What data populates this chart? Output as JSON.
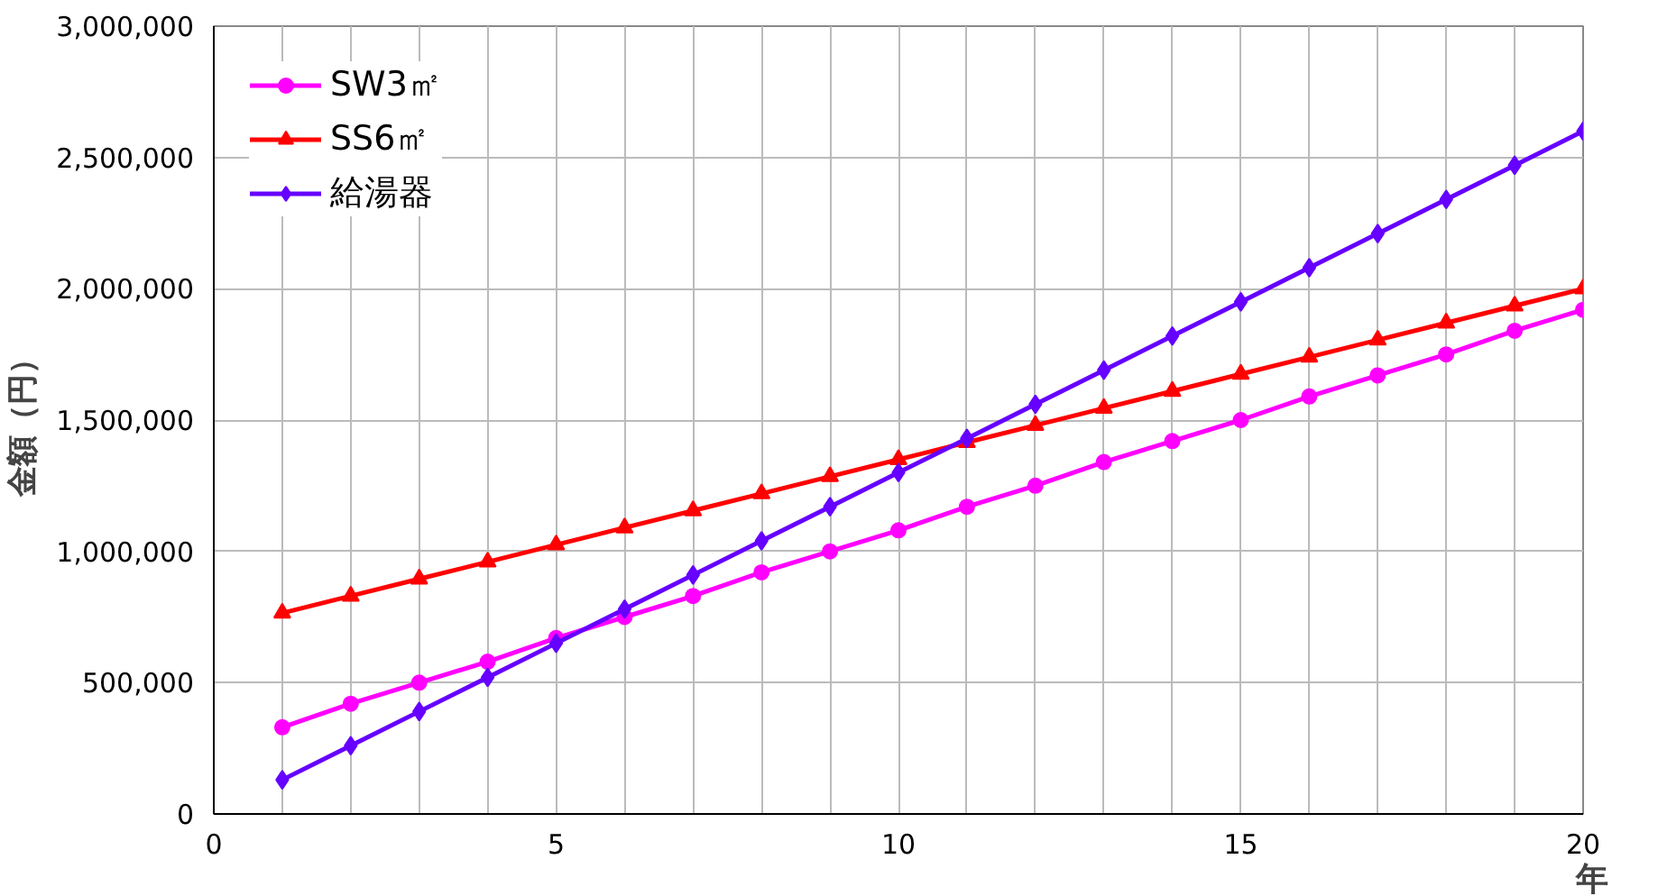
{
  "chart_data": {
    "type": "line",
    "xlabel": "年",
    "ylabel": "金額（円）",
    "x": [
      1,
      2,
      3,
      4,
      5,
      6,
      7,
      8,
      9,
      10,
      11,
      12,
      13,
      14,
      15,
      16,
      17,
      18,
      19,
      20
    ],
    "series": [
      {
        "name": "SW3㎡",
        "color": "#ff00ff",
        "marker": "circle",
        "values": [
          330000,
          420000,
          500000,
          580000,
          670000,
          750000,
          830000,
          920000,
          1000000,
          1080000,
          1170000,
          1250000,
          1340000,
          1420000,
          1500000,
          1590000,
          1670000,
          1750000,
          1840000,
          1920000
        ]
      },
      {
        "name": "SS6㎡",
        "color": "#ff0000",
        "marker": "triangle",
        "values": [
          765000,
          830000,
          895000,
          960000,
          1025000,
          1090000,
          1155000,
          1220000,
          1285000,
          1350000,
          1415000,
          1480000,
          1545000,
          1610000,
          1675000,
          1740000,
          1805000,
          1870000,
          1935000,
          2000000
        ]
      },
      {
        "name": "給湯器",
        "color": "#6600ff",
        "marker": "diamond",
        "values": [
          130000,
          260000,
          390000,
          520000,
          650000,
          780000,
          910000,
          1040000,
          1170000,
          1300000,
          1430000,
          1560000,
          1690000,
          1820000,
          1950000,
          2080000,
          2210000,
          2340000,
          2470000,
          2600000
        ]
      }
    ],
    "xlim": [
      0,
      20
    ],
    "ylim": [
      0,
      3000000
    ],
    "xticks": [
      0,
      {
        "value": 1,
        "label": null
      },
      {
        "value": 2,
        "label": null
      },
      {
        "value": 3,
        "label": null
      },
      {
        "value": 4,
        "label": null
      },
      5,
      {
        "value": 6,
        "label": null
      },
      {
        "value": 7,
        "label": null
      },
      {
        "value": 8,
        "label": null
      },
      {
        "value": 9,
        "label": null
      },
      10,
      {
        "value": 11,
        "label": null
      },
      {
        "value": 12,
        "label": null
      },
      {
        "value": 13,
        "label": null
      },
      {
        "value": 14,
        "label": null
      },
      15,
      {
        "value": 16,
        "label": null
      },
      {
        "value": 17,
        "label": null
      },
      {
        "value": 18,
        "label": null
      },
      {
        "value": 19,
        "label": null
      },
      20
    ],
    "yticks": [
      {
        "value": 0,
        "label": "0"
      },
      {
        "value": 500000,
        "label": "500,000"
      },
      {
        "value": 1000000,
        "label": "1,000,000"
      },
      {
        "value": 1500000,
        "label": "1,500,000"
      },
      {
        "value": 2000000,
        "label": "2,000,000"
      },
      {
        "value": 2500000,
        "label": "2,500,000"
      },
      {
        "value": 3000000,
        "label": "3,000,000"
      }
    ],
    "grid": true,
    "legend": "top left",
    "line_style": "solid"
  }
}
